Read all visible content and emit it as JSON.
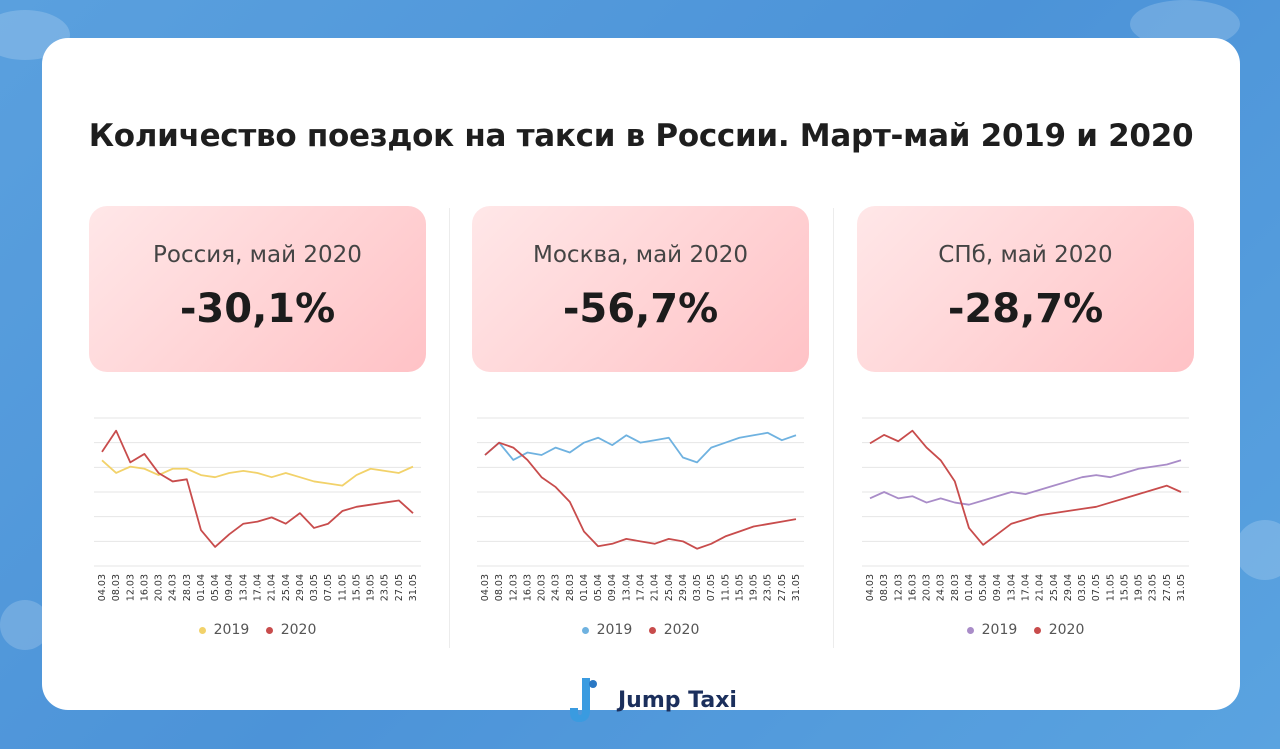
{
  "title": "Количество поездок на такси в России. Март-май 2019 и 2020",
  "x_ticks": [
    "04.03",
    "08.03",
    "12.03",
    "16.03",
    "20.03",
    "24.03",
    "28.03",
    "01.04",
    "05.04",
    "09.04",
    "13.04",
    "17.04",
    "21.04",
    "25.04",
    "29.04",
    "03.05",
    "07.05",
    "11.05",
    "15.05",
    "19.05",
    "23.05",
    "27.05",
    "31.05"
  ],
  "panels": [
    {
      "label": "Россия, май 2020",
      "value": "-30,1%",
      "legend": [
        "2019",
        "2020"
      ],
      "colors": [
        "#f2d26a",
        "#c84c4c"
      ],
      "chart_idx": 0
    },
    {
      "label": "Москва, май 2020",
      "value": "-56,7%",
      "legend": [
        "2019",
        "2020"
      ],
      "colors": [
        "#6fb2e0",
        "#c84c4c"
      ],
      "chart_idx": 1
    },
    {
      "label": "СПб, май 2020",
      "value": "-28,7%",
      "legend": [
        "2019",
        "2020"
      ],
      "colors": [
        "#a98cc8",
        "#c84c4c"
      ],
      "chart_idx": 2
    }
  ],
  "brand": {
    "name": "Jump Taxi",
    "logo_color": "#3a9be0"
  },
  "chart_data": [
    {
      "type": "line",
      "x": [
        "04.03",
        "08.03",
        "12.03",
        "16.03",
        "20.03",
        "24.03",
        "28.03",
        "01.04",
        "05.04",
        "09.04",
        "13.04",
        "17.04",
        "21.04",
        "25.04",
        "29.04",
        "03.05",
        "07.05",
        "11.05",
        "15.05",
        "19.05",
        "23.05",
        "27.05",
        "31.05"
      ],
      "series": [
        {
          "name": "2019",
          "values": [
            70,
            64,
            67,
            66,
            63,
            66,
            66,
            63,
            62,
            64,
            65,
            64,
            62,
            64,
            62,
            60,
            59,
            58,
            63,
            66,
            65,
            64,
            67
          ]
        },
        {
          "name": "2020",
          "values": [
            74,
            84,
            69,
            73,
            64,
            60,
            61,
            37,
            29,
            35,
            40,
            41,
            43,
            40,
            45,
            38,
            40,
            46,
            48,
            49,
            50,
            51,
            45
          ]
        }
      ],
      "ylim": [
        20,
        90
      ]
    },
    {
      "type": "line",
      "x": [
        "04.03",
        "08.03",
        "12.03",
        "16.03",
        "20.03",
        "24.03",
        "28.03",
        "01.04",
        "05.04",
        "09.04",
        "13.04",
        "17.04",
        "21.04",
        "25.04",
        "29.04",
        "03.05",
        "07.05",
        "11.05",
        "15.05",
        "19.05",
        "23.05",
        "27.05",
        "31.05"
      ],
      "series": [
        {
          "name": "2019",
          "values": [
            65,
            70,
            63,
            66,
            65,
            68,
            66,
            70,
            72,
            69,
            73,
            70,
            71,
            72,
            64,
            62,
            68,
            70,
            72,
            73,
            74,
            71,
            73
          ]
        },
        {
          "name": "2020",
          "values": [
            65,
            70,
            68,
            63,
            56,
            52,
            46,
            34,
            28,
            29,
            31,
            30,
            29,
            31,
            30,
            27,
            29,
            32,
            34,
            36,
            37,
            38,
            39
          ]
        }
      ],
      "ylim": [
        20,
        80
      ]
    },
    {
      "type": "line",
      "x": [
        "04.03",
        "08.03",
        "12.03",
        "16.03",
        "20.03",
        "24.03",
        "28.03",
        "01.04",
        "05.04",
        "09.04",
        "13.04",
        "17.04",
        "21.04",
        "25.04",
        "29.04",
        "03.05",
        "07.05",
        "11.05",
        "15.05",
        "19.05",
        "23.05",
        "27.05",
        "31.05"
      ],
      "series": [
        {
          "name": "2019",
          "values": [
            52,
            55,
            52,
            53,
            50,
            52,
            50,
            49,
            51,
            53,
            55,
            54,
            56,
            58,
            60,
            62,
            63,
            62,
            64,
            66,
            67,
            68,
            70
          ]
        },
        {
          "name": "2020",
          "values": [
            78,
            82,
            79,
            84,
            76,
            70,
            60,
            38,
            30,
            35,
            40,
            42,
            44,
            45,
            46,
            47,
            48,
            50,
            52,
            54,
            56,
            58,
            55
          ]
        }
      ],
      "ylim": [
        20,
        90
      ]
    }
  ]
}
